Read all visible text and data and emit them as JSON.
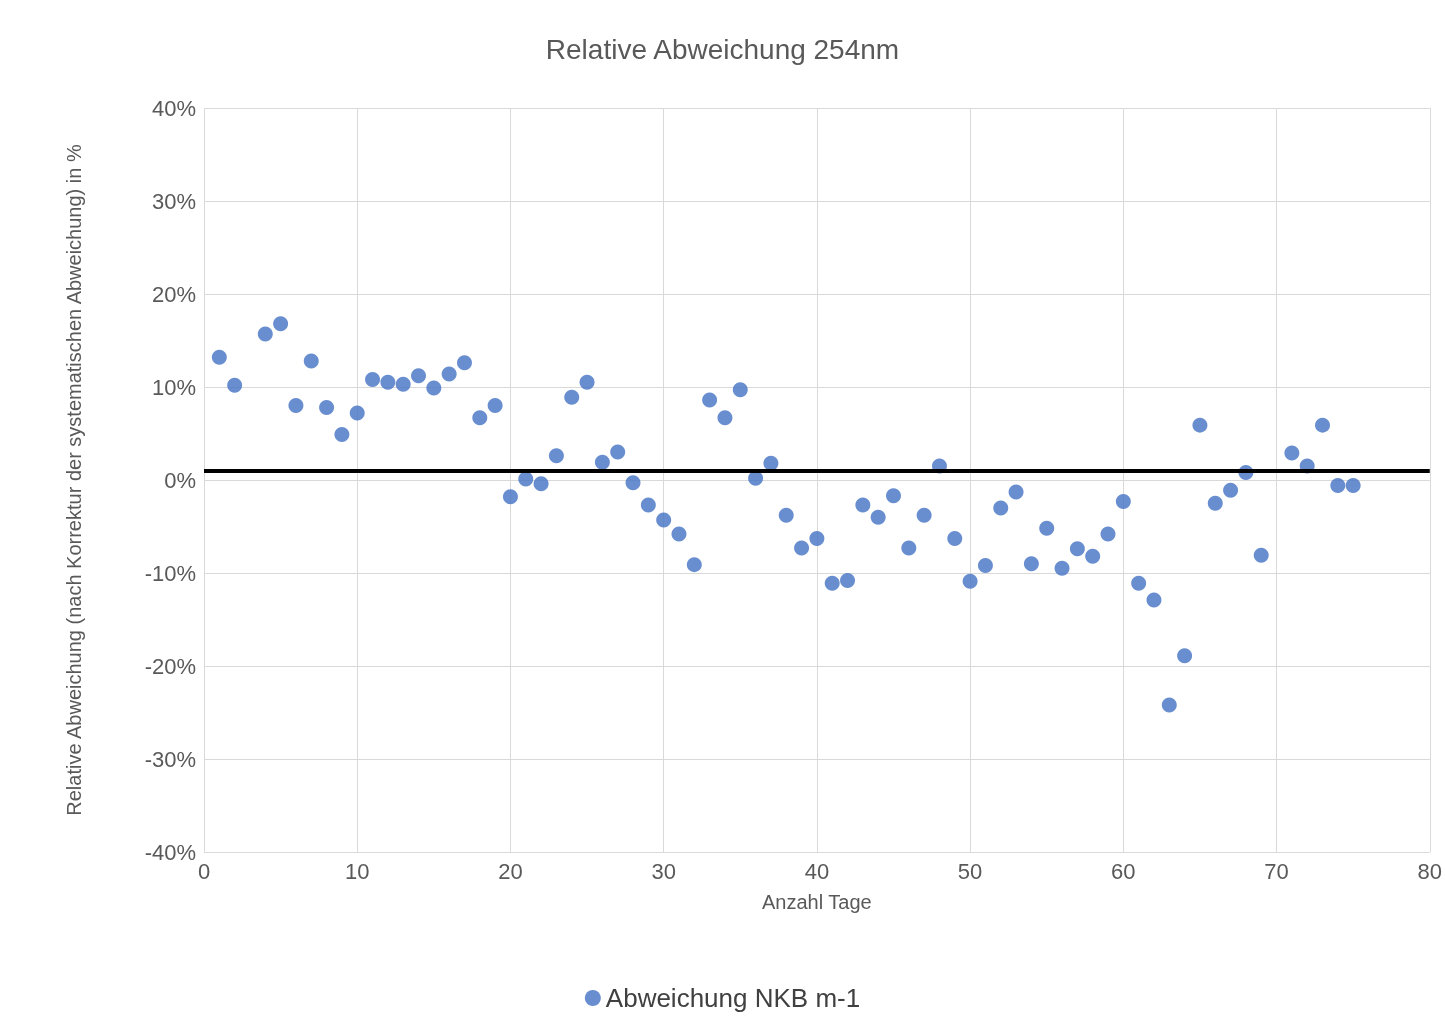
{
  "chart_data": {
    "type": "scatter",
    "title": "Relative Abweichung 254nm",
    "xlabel": "Anzahl Tage",
    "ylabel": "Relative Abweichung (nach Korrektur der systematischen Abweichung) in %",
    "x": [
      1,
      2,
      4,
      5,
      6,
      7,
      8,
      9,
      10,
      11,
      12,
      13,
      14,
      15,
      16,
      17,
      18,
      19,
      20,
      21,
      22,
      23,
      24,
      25,
      26,
      27,
      28,
      29,
      30,
      31,
      32,
      33,
      34,
      35,
      36,
      37,
      38,
      39,
      40,
      41,
      42,
      43,
      44,
      45,
      46,
      47,
      48,
      49,
      50,
      51,
      52,
      53,
      54,
      55,
      56,
      57,
      58,
      59,
      60,
      61,
      62,
      63,
      64,
      65,
      66,
      67,
      68,
      69,
      71,
      72,
      73,
      74,
      75
    ],
    "series": [
      {
        "name": "Abweichung NKB m-1",
        "color": "#4472c4",
        "values": [
          13.2,
          10.2,
          15.7,
          16.8,
          8.0,
          12.8,
          7.8,
          4.9,
          7.2,
          10.8,
          10.5,
          10.3,
          11.2,
          9.9,
          11.4,
          12.6,
          6.7,
          8.0,
          -1.8,
          0.1,
          -0.4,
          2.6,
          8.9,
          10.5,
          1.9,
          3.0,
          -0.3,
          -2.7,
          -4.3,
          -5.8,
          -9.1,
          8.6,
          6.7,
          9.7,
          0.2,
          1.8,
          -3.8,
          -7.3,
          -6.3,
          -11.1,
          -10.8,
          -2.7,
          -4.0,
          -1.7,
          -7.3,
          -3.8,
          1.5,
          -6.3,
          -10.9,
          -9.2,
          -3.0,
          -1.3,
          -9.0,
          -5.2,
          -9.5,
          -7.4,
          -8.2,
          -5.8,
          -2.3,
          -11.1,
          -12.9,
          -24.2,
          -18.9,
          5.9,
          -2.5,
          -1.1,
          0.8,
          -8.1,
          2.9,
          1.5,
          5.9,
          -0.6,
          -0.6
        ]
      }
    ],
    "xlim": [
      0,
      80
    ],
    "xticks": [
      0,
      10,
      20,
      30,
      40,
      50,
      60,
      70,
      80
    ],
    "ylim": [
      -40,
      40
    ],
    "yticks": [
      {
        "value": -40,
        "label": "-40%"
      },
      {
        "value": -30,
        "label": "-30%"
      },
      {
        "value": -20,
        "label": "-20%"
      },
      {
        "value": -10,
        "label": "-10%"
      },
      {
        "value": 0,
        "label": "0%"
      },
      {
        "value": 10,
        "label": "10%"
      },
      {
        "value": 20,
        "label": "20%"
      },
      {
        "value": 30,
        "label": "30%"
      },
      {
        "value": 40,
        "label": "40%"
      }
    ],
    "ref_lines": [
      {
        "axis": "y",
        "value": 1,
        "color": "#000000",
        "line_style": "solid"
      }
    ],
    "grid": true,
    "legend": "bottom",
    "marker": "circle"
  }
}
